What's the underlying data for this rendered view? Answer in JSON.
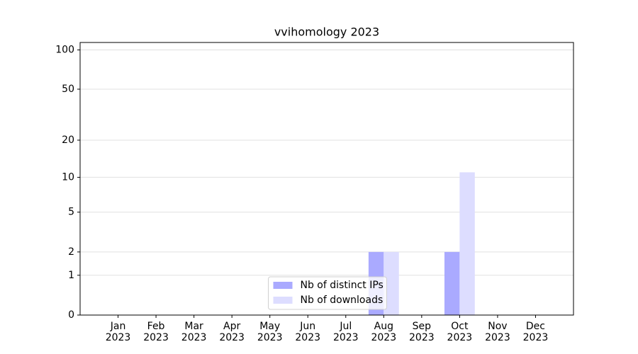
{
  "chart_data": {
    "type": "bar",
    "title": "vvihomology 2023",
    "categories": [
      "Jan\n2023",
      "Feb\n2023",
      "Mar\n2023",
      "Apr\n2023",
      "May\n2023",
      "Jun\n2023",
      "Jul\n2023",
      "Aug\n2023",
      "Sep\n2023",
      "Oct\n2023",
      "Nov\n2023",
      "Dec\n2023"
    ],
    "series": [
      {
        "name": "Nb of distinct IPs",
        "color": "#aaaaff",
        "values": [
          0,
          0,
          0,
          0,
          0,
          0,
          0,
          2,
          0,
          2,
          0,
          0
        ]
      },
      {
        "name": "Nb of downloads",
        "color": "#ddddff",
        "values": [
          0,
          0,
          0,
          0,
          0,
          0,
          0,
          2,
          0,
          11,
          0,
          0
        ]
      }
    ],
    "yscale": "log1p",
    "ylim": [
      0,
      114
    ],
    "yticks": [
      0,
      1,
      2,
      5,
      10,
      20,
      50,
      100
    ],
    "grid": true,
    "legend": "lower center"
  }
}
